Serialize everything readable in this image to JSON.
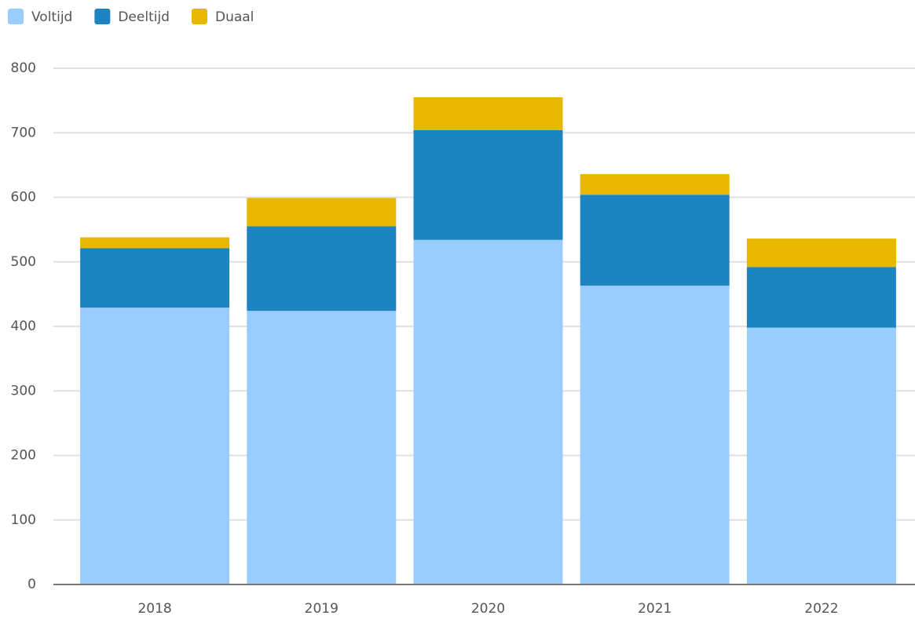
{
  "chart_data": {
    "type": "stacked_bar",
    "categories": [
      "2018",
      "2019",
      "2020",
      "2021",
      "2022"
    ],
    "series": [
      {
        "name": "Voltijd",
        "color": "#99ccff",
        "values": [
          429,
          424,
          534,
          463,
          398
        ]
      },
      {
        "name": "Deeltijd",
        "color": "#1c84c0",
        "values": [
          92,
          131,
          170,
          141,
          94
        ]
      },
      {
        "name": "Duaal",
        "color": "#e8b700",
        "values": [
          17,
          44,
          51,
          32,
          44
        ]
      }
    ],
    "ylim": [
      0,
      800
    ],
    "yticks": [
      0,
      100,
      200,
      300,
      400,
      500,
      600,
      700,
      800
    ],
    "grid": true,
    "legend": "top-left"
  }
}
